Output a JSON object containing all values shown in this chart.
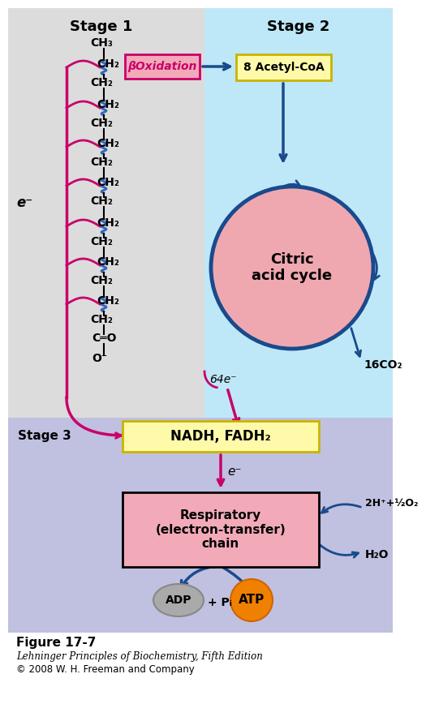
{
  "bg_stage1": "#dcdcdc",
  "bg_stage2": "#bee8f8",
  "bg_stage3": "#c0c0e0",
  "color_pink_box": "#f2aab8",
  "color_yellow_box": "#fffaaa",
  "color_yellow_border": "#c8b400",
  "color_pink_ellipse": "#f0a8b0",
  "color_pink_resp": "#f2aab8",
  "color_blue": "#1a4a8c",
  "color_magenta": "#c8006a",
  "color_orange": "#f08000",
  "color_gray": "#aaaaaa",
  "stage1_label": "Stage 1",
  "stage2_label": "Stage 2",
  "stage3_label": "Stage 3",
  "beta_ox_label": "βOxidation",
  "acetyl_label": "8 Acetyl-CoA",
  "citric_label": "Citric\nacid cycle",
  "co2_label": "16CO₂",
  "e64_label": "64e⁻",
  "nadh_label": "NADH, FADH₂",
  "eminus_label": "e⁻",
  "resp_label": "Respiratory\n(electron-transfer)\nchain",
  "reactant_label": "2H⁺+½O₂",
  "water_label": "H₂O",
  "adp_label": "ADP",
  "pi_label": "+ Pᵢ",
  "atp_label": "ATP",
  "eminus_left": "e⁻",
  "figure_label": "Figure 17-7",
  "book_label": "Lehninger Principles of Biochemistry, Fifth Edition",
  "copy_label": "© 2008 W. H. Freeman and Company"
}
